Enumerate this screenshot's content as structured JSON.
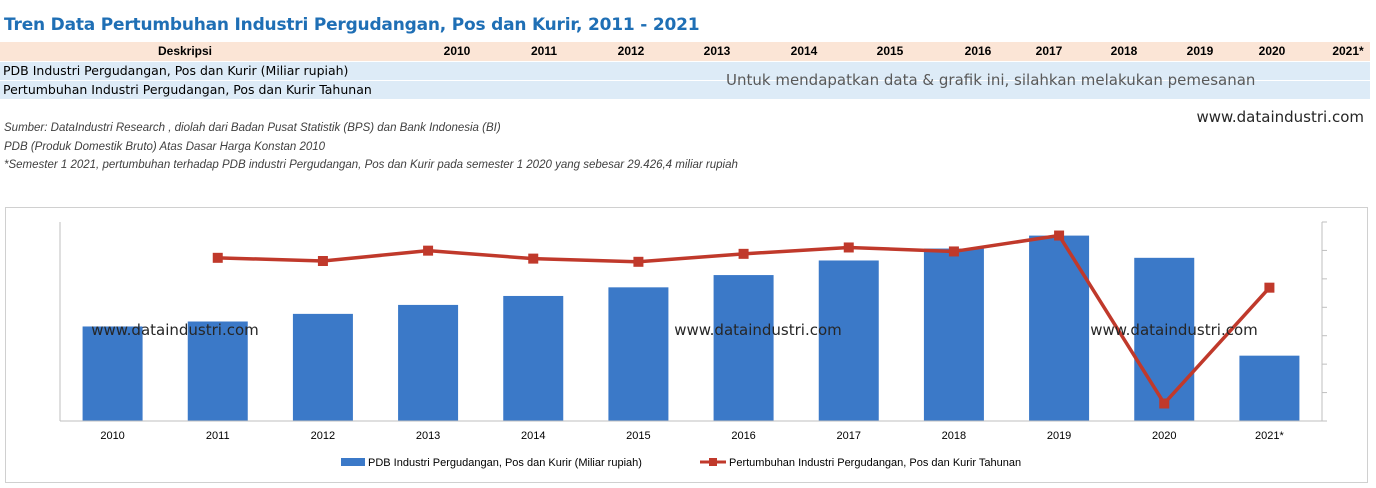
{
  "title": "Tren Data Pertumbuhan Industri Pergudangan, Pos dan Kurir, 2011 - 2021",
  "table": {
    "header_desc": "Deskripsi",
    "years": [
      "2010",
      "2011",
      "2012",
      "2013",
      "2014",
      "2015",
      "2016",
      "2017",
      "2018",
      "2019",
      "2020",
      "2021*"
    ],
    "row1": "PDB Industri Pergudangan, Pos dan Kurir (Miliar rupiah)",
    "row2": "Pertumbuhan Industri Pergudangan, Pos dan Kurir Tahunan",
    "notice": "Untuk mendapatkan data & grafik ini, silahkan melakukan pemesanan"
  },
  "website": "www.dataindustri.com",
  "notes": [
    "Sumber: DataIndustri Research , diolah dari Badan Pusat Statistik (BPS) dan Bank Indonesia (BI)",
    "PDB (Produk Domestik Bruto) Atas Dasar Harga Konstan 2010",
    "*Semester 1 2021, pertumbuhan terhadap PDB industri  Pergudangan, Pos dan Kurir pada semester 1 2020 yang sebesar 29.426,4 miliar rupiah"
  ],
  "colors": {
    "bar": "#3b79c8",
    "line": "#c0392b",
    "title": "#1f6fb5",
    "header_bg": "#fbe5d6",
    "row_bg": "#ddebf7"
  },
  "chart_data": {
    "type": "bar",
    "categories": [
      "2010",
      "2011",
      "2012",
      "2013",
      "2014",
      "2015",
      "2016",
      "2017",
      "2018",
      "2019",
      "2020",
      "2021*"
    ],
    "series": [
      {
        "name": "PDB Industri Pergudangan, Pos dan Kurir (Miliar rupiah)",
        "type": "bar",
        "axis": "left",
        "values": [
          28.5,
          30.0,
          32.3,
          35.0,
          37.7,
          40.3,
          44.0,
          48.4,
          52.0,
          55.9,
          49.2,
          19.7
        ]
      },
      {
        "name": "Pertumbuhan Industri Pergudangan, Pos dan Kurir Tahunan",
        "type": "line",
        "axis": "right",
        "values": [
          null,
          5.0,
          4.2,
          6.8,
          4.8,
          4.0,
          6.0,
          7.6,
          6.6,
          10.6,
          -31.6,
          -2.5
        ]
      }
    ],
    "left_ylim": [
      0,
      60
    ],
    "right_ylim": [
      -36,
      14
    ],
    "axis_tick_labels_shown": false,
    "grid": false,
    "legend_position": "bottom",
    "watermarks": [
      "www.dataindustri.com",
      "www.dataindustri.com",
      "www.dataindustri.com"
    ]
  }
}
